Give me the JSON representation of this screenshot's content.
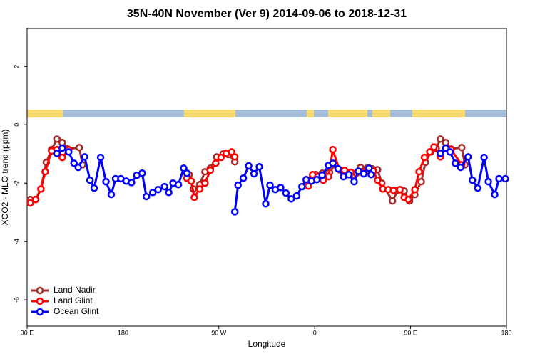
{
  "chart_data": {
    "type": "line",
    "title": "35N-40N November (Ver 9)   2014-09-06 to 2018-12-31",
    "x_label": "Longitude",
    "y_label": "XCO2 - MLO trend (ppm)",
    "xlim": [
      90,
      540
    ],
    "ylim": [
      -6.9,
      3.3
    ],
    "xticks": [
      {
        "value": 90,
        "label": "90 E"
      },
      {
        "value": 180,
        "label": "180"
      },
      {
        "value": 270,
        "label": "90 W"
      },
      {
        "value": 360,
        "label": "0"
      },
      {
        "value": 450,
        "label": "90 E"
      },
      {
        "value": 540,
        "label": "180"
      }
    ],
    "yticks": [
      2,
      0,
      -2,
      -4,
      -6
    ],
    "legend": "bottom-left",
    "series": [
      {
        "name": "Land Nadir",
        "color": "#a52a2a",
        "x": [
          93,
          98,
          103,
          108,
          113,
          118,
          123,
          128,
          139,
          142,
          null,
          242,
          246,
          252,
          257,
          262,
          268,
          274,
          279,
          285,
          null,
          356,
          361,
          367,
          374,
          379,
          386,
          391,
          397,
          403,
          409,
          414,
          419,
          423,
          433,
          438,
          444,
          449,
          454,
          460,
          464,
          469,
          474,
          478,
          483,
          488,
          498,
          501
        ],
        "values": [
          -2.56,
          -2.56,
          -2.2,
          -1.29,
          -0.85,
          -0.49,
          -0.61,
          -0.83,
          -0.78,
          -1.37,
          null,
          -1.71,
          -2.2,
          -2.05,
          -1.61,
          -1.49,
          -1.1,
          -1.0,
          -1.02,
          -1.27,
          null,
          -1.88,
          -1.71,
          -1.66,
          -1.63,
          -1.37,
          -1.56,
          -1.63,
          -1.71,
          -1.46,
          -1.49,
          -1.51,
          -1.54,
          -2.0,
          -2.61,
          -2.25,
          -2.27,
          -2.61,
          -2.39,
          -1.95,
          -1.29,
          -0.93,
          -0.81,
          -0.49,
          -0.61,
          -0.83,
          -0.78,
          -1.37
        ]
      },
      {
        "name": "Land Glint",
        "color": "#ff0000",
        "x": [
          93,
          98,
          103,
          107,
          113,
          118,
          123,
          129,
          null,
          240,
          244,
          247,
          252,
          257,
          262,
          267,
          272,
          277,
          282,
          285,
          null,
          354,
          358,
          363,
          368,
          373,
          377,
          383,
          388,
          394,
          399,
          404,
          410,
          415,
          419,
          424,
          429,
          434,
          440,
          444,
          448,
          454,
          458,
          463,
          468,
          472,
          478,
          483,
          488,
          498
        ],
        "values": [
          -2.68,
          -2.56,
          -2.2,
          -1.61,
          -0.9,
          -0.85,
          -1.12,
          -0.85,
          null,
          -1.83,
          -1.93,
          -2.49,
          -2.2,
          -2.0,
          -1.56,
          -1.32,
          -1.12,
          -0.98,
          -0.93,
          -1.1,
          null,
          -2.1,
          -1.71,
          -1.78,
          -1.9,
          -1.78,
          -0.85,
          -1.54,
          -1.56,
          -1.63,
          -1.66,
          -1.61,
          -1.56,
          -1.59,
          -1.9,
          -2.2,
          -2.22,
          -2.25,
          -2.22,
          -2.49,
          -2.56,
          -2.22,
          -1.61,
          -1.12,
          -0.93,
          -0.76,
          -1.1,
          -0.8,
          -0.85,
          -1.37
        ]
      },
      {
        "name": "Ocean Glint",
        "color": "#0000ff",
        "x": [
          118,
          123,
          129,
          134,
          138,
          144,
          149,
          153,
          159,
          164,
          169,
          173,
          178,
          183,
          188,
          193,
          198,
          202,
          208,
          213,
          219,
          223,
          227,
          232,
          237,
          240,
          null,
          285,
          288,
          293,
          298,
          303,
          308,
          314,
          318,
          323,
          328,
          333,
          338,
          343,
          348,
          352,
          357,
          362,
          367,
          373,
          377,
          382,
          387,
          392,
          397,
          401,
          406,
          411,
          413,
          null,
          478,
          483,
          487,
          492,
          497,
          504,
          508,
          513,
          519,
          523,
          529,
          533,
          539
        ],
        "values": [
          -0.98,
          -0.8,
          -0.93,
          -1.32,
          -1.46,
          -1.1,
          -1.9,
          -2.17,
          -1.12,
          -1.95,
          -2.39,
          -1.85,
          -1.85,
          -1.93,
          -1.98,
          -1.73,
          -1.66,
          -2.46,
          -2.32,
          -2.22,
          -2.12,
          -2.32,
          -2.0,
          -2.05,
          -1.49,
          -1.66,
          null,
          -2.98,
          -2.07,
          -1.83,
          -1.41,
          -1.68,
          -1.44,
          -2.71,
          -2.07,
          -2.22,
          -2.15,
          -2.34,
          -2.54,
          -2.44,
          -2.12,
          -1.88,
          -1.93,
          -1.88,
          -1.73,
          -1.39,
          -1.32,
          -1.51,
          -1.78,
          -1.71,
          -1.95,
          -1.59,
          -1.68,
          -1.49,
          -1.71,
          null,
          -0.98,
          -0.8,
          -0.93,
          -1.32,
          -1.46,
          -1.1,
          -1.9,
          -2.17,
          -1.12,
          -1.95,
          -2.39,
          -1.85,
          -1.85
        ]
      }
    ]
  }
}
